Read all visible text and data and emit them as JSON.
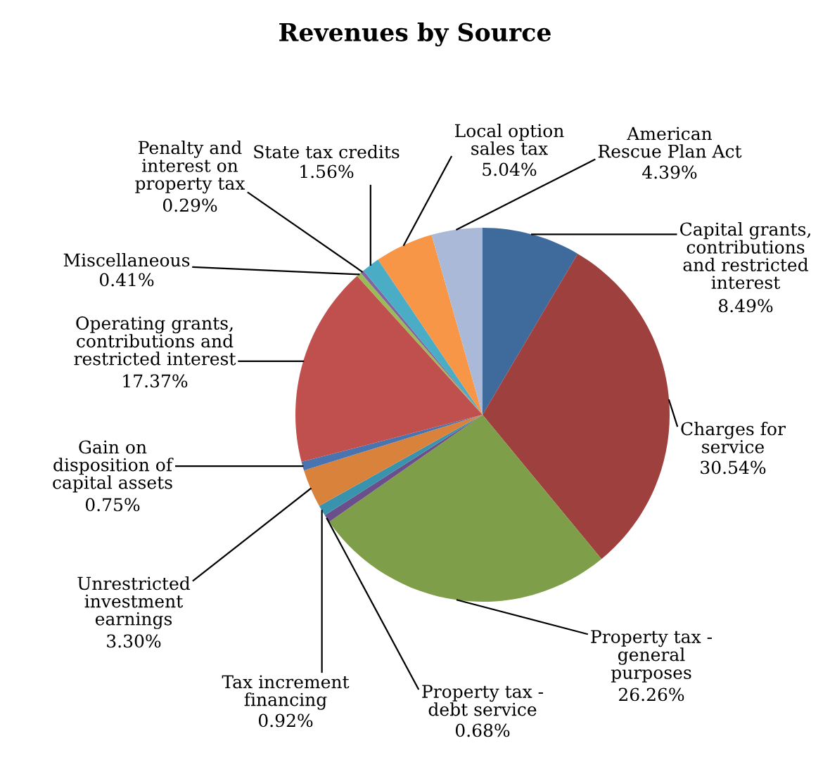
{
  "chart_data": {
    "type": "pie",
    "title": "Revenues by Source",
    "categories": [
      "Capital grants, contributions and restricted interest",
      "Charges for service",
      "Property tax - general purposes",
      "Property tax - debt service",
      "Tax increment financing",
      "Unrestricted investment earnings",
      "Gain on disposition of capital assets",
      "Operating grants, contributions and restricted interest",
      "Miscellaneous",
      "Penalty and interest on property tax",
      "State tax credits",
      "Local option sales tax",
      "American Rescue Plan Act"
    ],
    "values": [
      8.49,
      30.54,
      26.26,
      0.68,
      0.92,
      3.3,
      0.75,
      17.37,
      0.41,
      0.29,
      1.56,
      5.04,
      4.39
    ],
    "value_labels": [
      "8.49%",
      "30.54%",
      "26.26%",
      "0.68%",
      "0.92%",
      "3.30%",
      "0.75%",
      "17.37%",
      "0.41%",
      "0.29%",
      "1.56%",
      "5.04%",
      "4.39%"
    ],
    "colors": [
      "#3f6a9c",
      "#9e413e",
      "#7f9e4a",
      "#6b4f8a",
      "#3a93ad",
      "#d9823b",
      "#4a74b0",
      "#c0504d",
      "#9bbb59",
      "#8064a2",
      "#4bacc6",
      "#f79646",
      "#aab9d8"
    ]
  }
}
